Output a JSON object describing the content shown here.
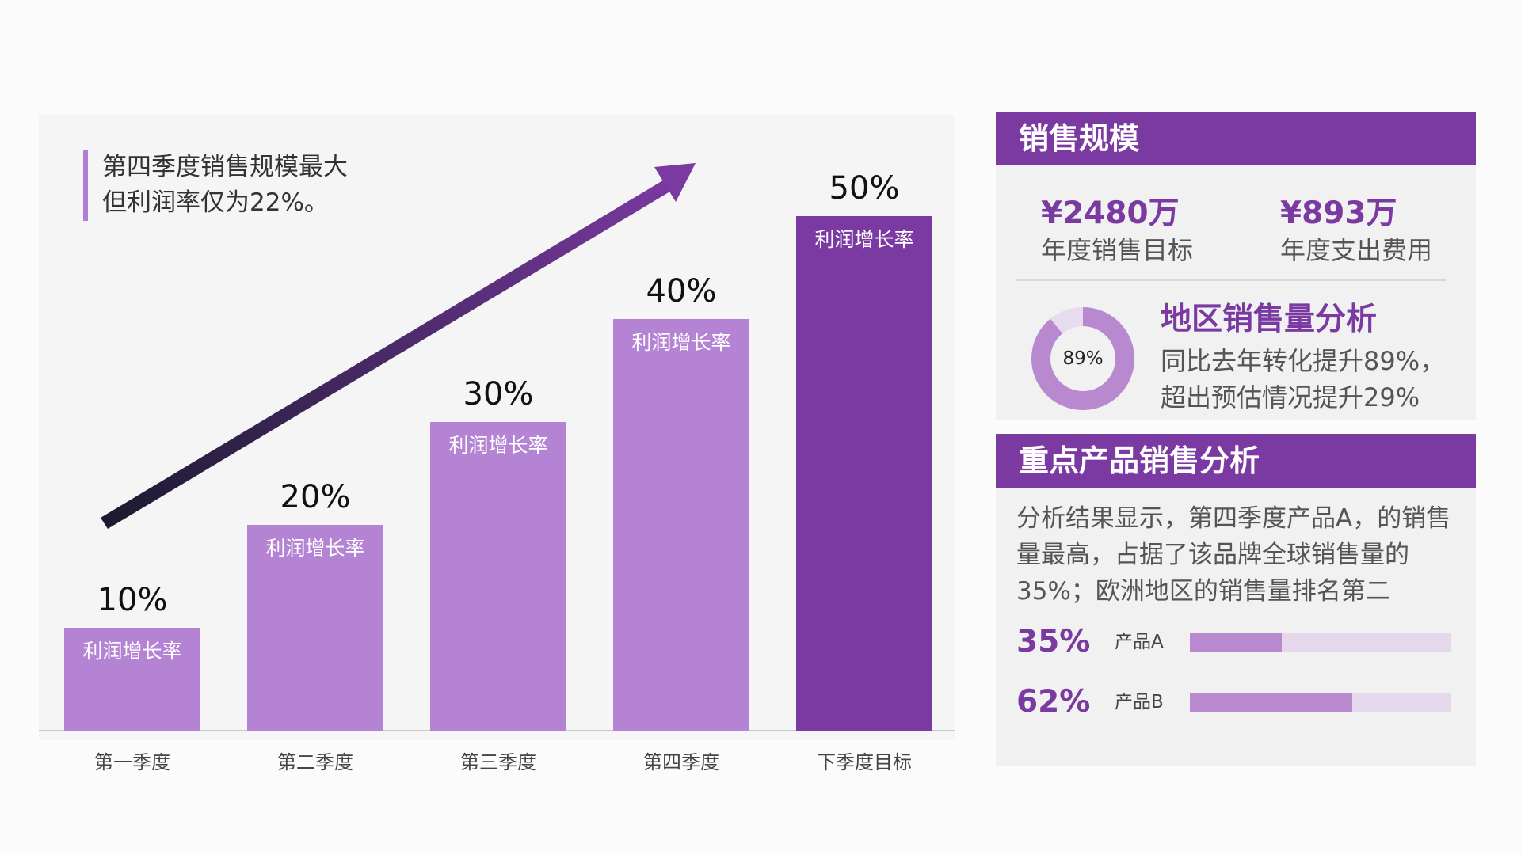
{
  "note": {
    "line1": "第四季度销售规模最大",
    "line2": "但利润率仅为22%。"
  },
  "chart_data": {
    "type": "bar",
    "categories": [
      "第一季度",
      "第二季度",
      "第三季度",
      "第四季度",
      "下季度目标"
    ],
    "values": [
      10,
      20,
      30,
      40,
      50
    ],
    "value_labels": [
      "10%",
      "20%",
      "30%",
      "40%",
      "50%"
    ],
    "bar_label": "利润增长率",
    "ylim": [
      0,
      50
    ],
    "grid": false,
    "colors": {
      "bar": "#b483d3",
      "highlight": "#7b3aa2",
      "arrow_start": "#1a1a2e",
      "arrow_end": "#7b3aa2"
    }
  },
  "sales_scale": {
    "title": "销售规模",
    "target_value": "¥2480万",
    "target_label": "年度销售目标",
    "expense_value": "¥893万",
    "expense_label": "年度支出费用"
  },
  "region": {
    "title": "地区销售量分析",
    "donut_percent": 89,
    "donut_label": "89%",
    "line1": "同比去年转化提升89%，",
    "line2": "超出预估情况提升29%"
  },
  "products": {
    "title": "重点产品销售分析",
    "description": "分析结果显示，第四季度产品A，的销售量最高，占据了该品牌全球销售量的35%；欧洲地区的销售量排名第二",
    "items": [
      {
        "percent_label": "35%",
        "name": "产品A",
        "value": 0.35
      },
      {
        "percent_label": "62%",
        "name": "产品B",
        "value": 0.62
      }
    ]
  }
}
